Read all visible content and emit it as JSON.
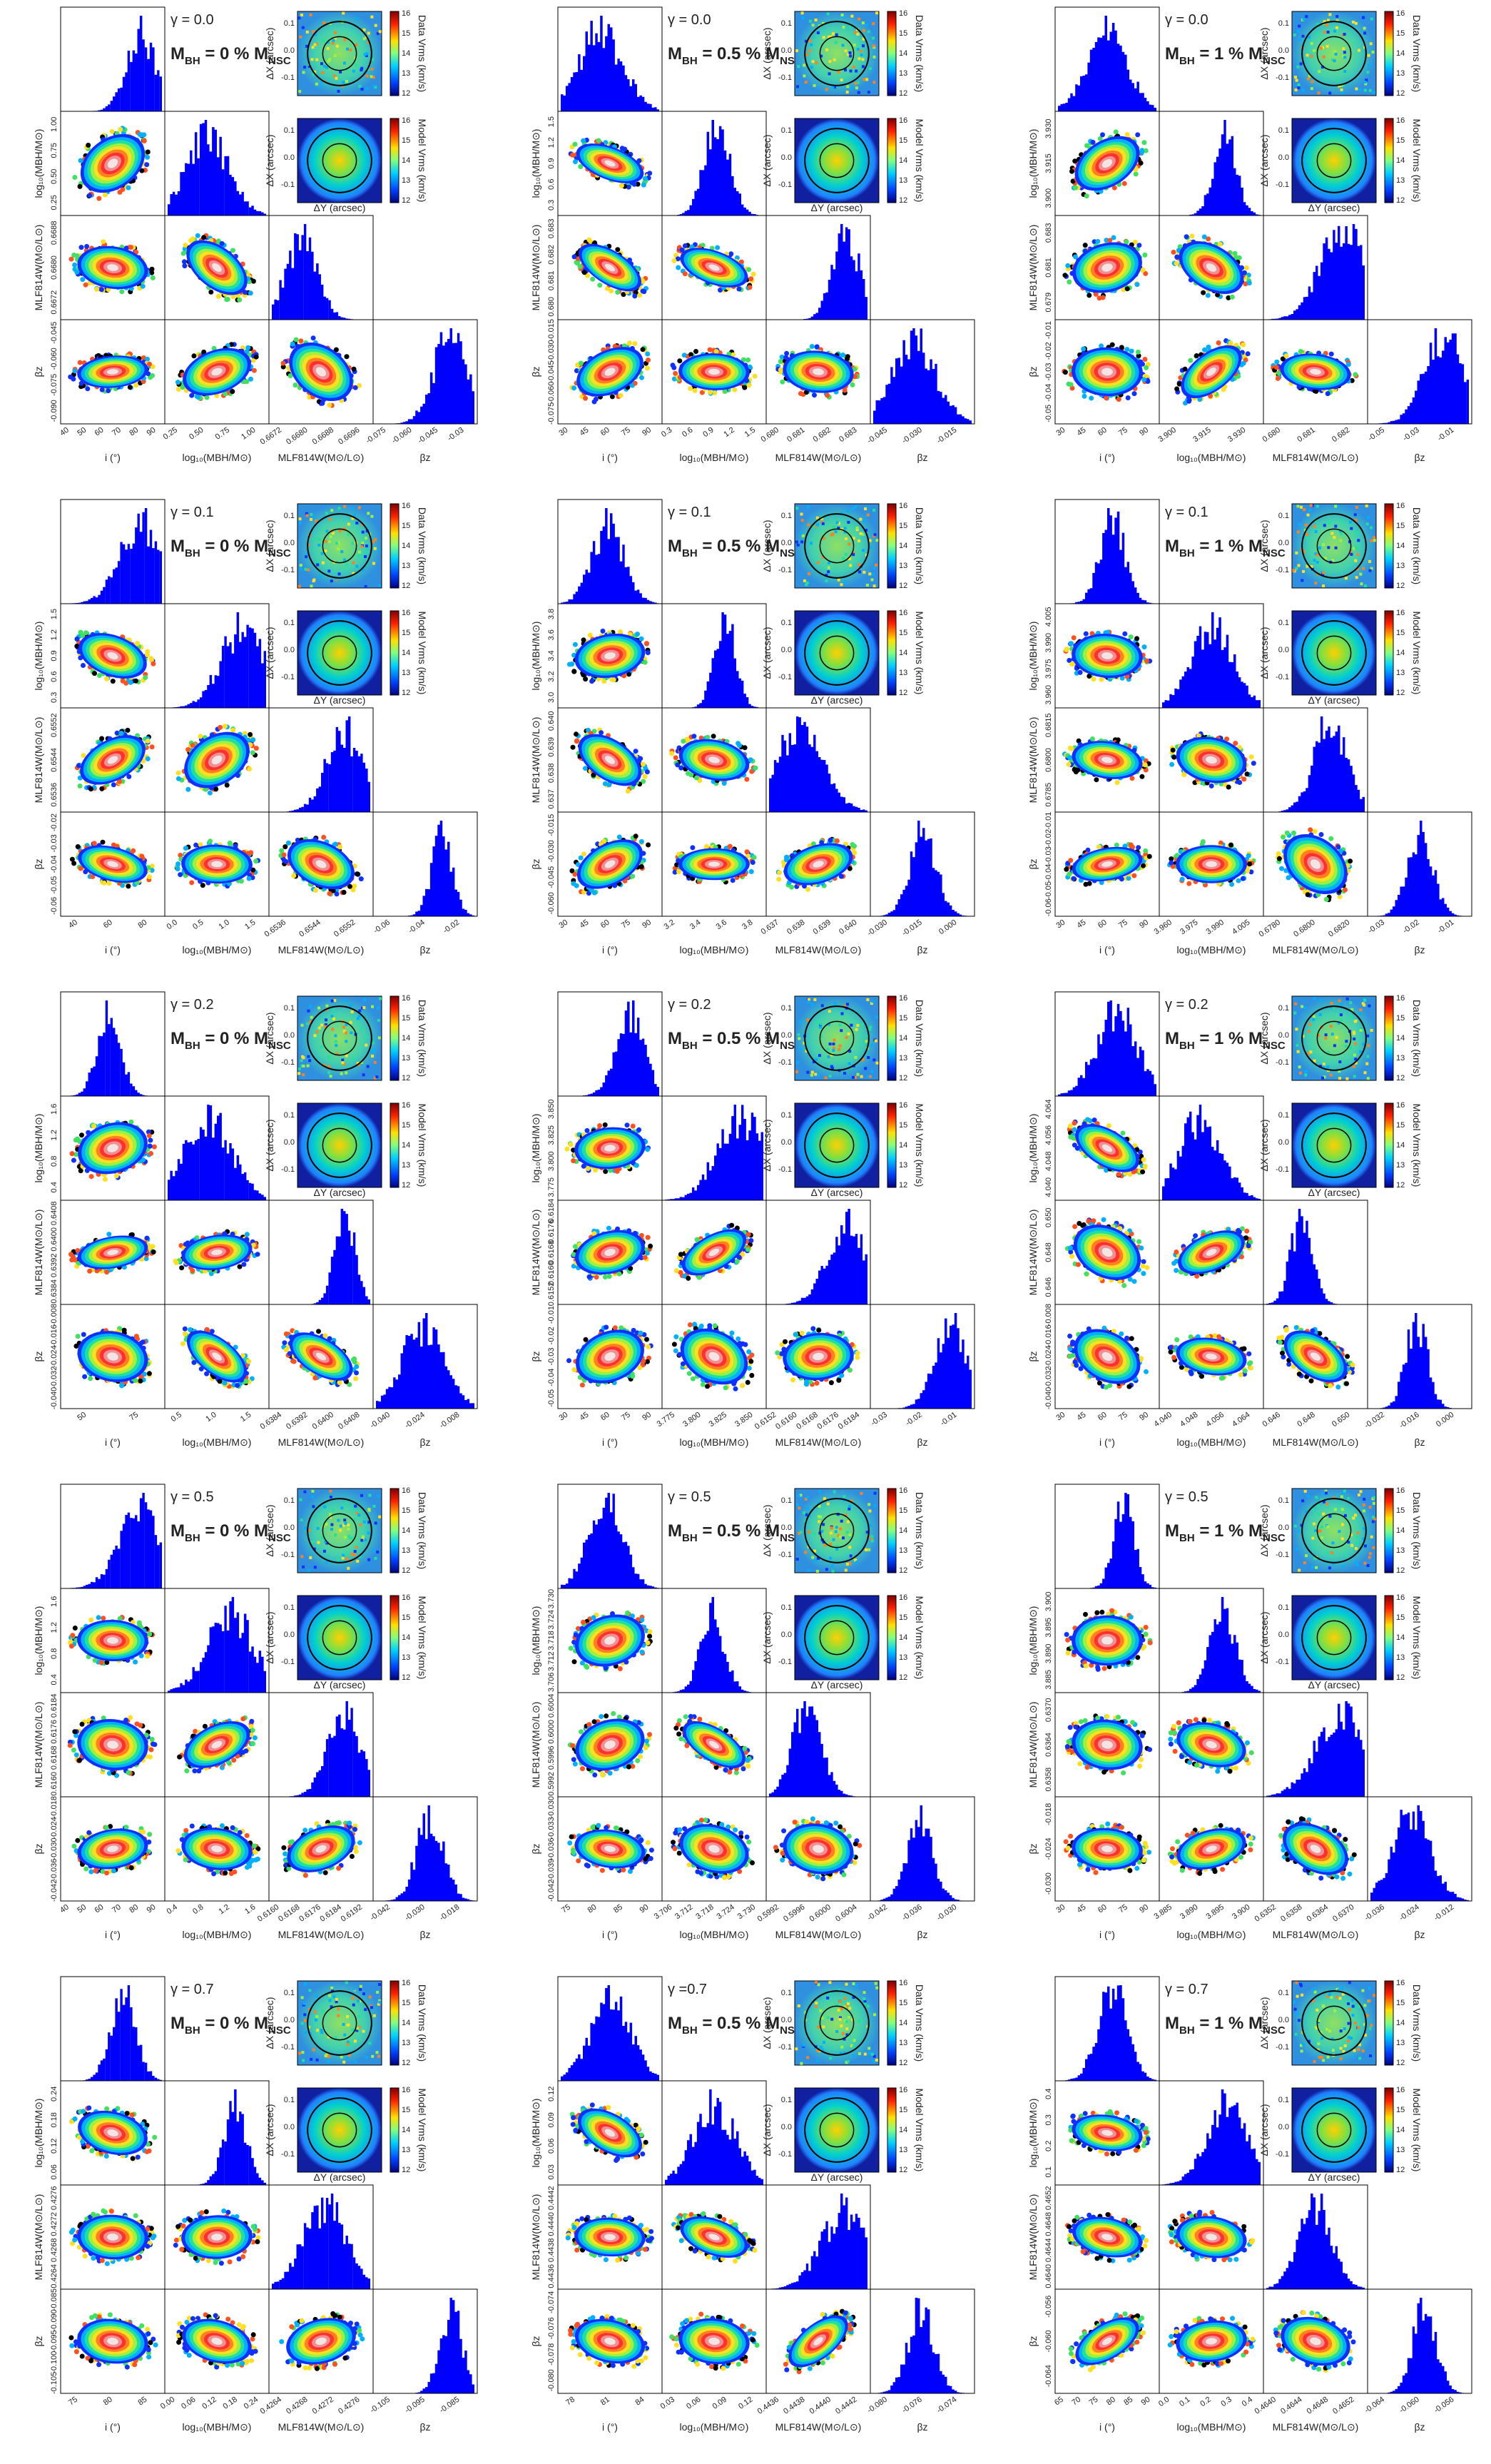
{
  "common": {
    "xlabels": [
      "i (°)",
      "log₁₀(MBH/M⊙)",
      "MLF814W(M⊙/L⊙)",
      "βz"
    ],
    "ylabels": [
      "log₁₀(MBH/M⊙)",
      "MLF814W(M⊙/L⊙)",
      "βz"
    ],
    "map_x": "ΔX (arcsec)",
    "map_y": "ΔY (arcsec)",
    "data_cbar": "Data Vrms (km/s)",
    "model_cbar": "Model Vrms (km/s)",
    "map_ticks": [
      "0.1",
      "0.0",
      "-0.1"
    ],
    "cbar_ticks": [
      "16",
      "15",
      "14",
      "13",
      "12"
    ]
  },
  "panels": [
    {
      "gamma": "γ = 0.0",
      "mbh": [
        "M",
        "BH",
        " = 0 % M",
        "NSC"
      ],
      "xticks": [
        [
          "40",
          "50",
          "60",
          "70",
          "80",
          "90"
        ],
        [
          "0.25",
          "0.50",
          "0.75",
          "1.00"
        ],
        [
          "0.6672",
          "0.6680",
          "0.6688",
          "0.6696"
        ],
        [
          "-0.075",
          "-0.060",
          "-0.045",
          "-0.03"
        ]
      ],
      "yticks": [
        [
          "0.25",
          "0.50",
          "0.75",
          "1.00"
        ],
        [
          "0.6672",
          "0.6680",
          "0.6688"
        ],
        [
          "-0.090",
          "-0.075",
          "-0.060",
          "-0.045"
        ]
      ]
    },
    {
      "gamma": "γ = 0.0",
      "mbh": [
        "M",
        "BH",
        " = 0.5 % M",
        "NSC"
      ],
      "xticks": [
        [
          "30",
          "45",
          "60",
          "75",
          "90"
        ],
        [
          "0.3",
          "0.6",
          "0.9",
          "1.2",
          "1.5"
        ],
        [
          "0.680",
          "0.681",
          "0.682",
          "0.683"
        ],
        [
          "-0.045",
          "-0.030",
          "-0.015"
        ]
      ],
      "yticks": [
        [
          "0.3",
          "0.6",
          "0.9",
          "1.2",
          "1.5"
        ],
        [
          "0.680",
          "0.681",
          "0.682",
          "0.683"
        ],
        [
          "-0.075",
          "-0.060",
          "-0.045",
          "-0.030",
          "-0.015"
        ]
      ]
    },
    {
      "gamma": "γ = 0.0",
      "mbh": [
        "M",
        "BH",
        " = 1 % M",
        "NSC"
      ],
      "xticks": [
        [
          "30",
          "45",
          "60",
          "75",
          "90"
        ],
        [
          "3.900",
          "3.915",
          "3.930"
        ],
        [
          "0.680",
          "0.681",
          "0.682"
        ],
        [
          "-0.05",
          "-0.03",
          "-0.01"
        ]
      ],
      "yticks": [
        [
          "3.900",
          "3.915",
          "3.930"
        ],
        [
          "0.679",
          "0.681",
          "0.683"
        ],
        [
          "-0.05",
          "-0.04",
          "-0.03",
          "-0.02",
          "-0.01"
        ]
      ]
    },
    {
      "gamma": "γ = 0.1",
      "mbh": [
        "M",
        "BH",
        " = 0 % M",
        "NSC"
      ],
      "xticks": [
        [
          "40",
          "60",
          "80"
        ],
        [
          "0.0",
          "0.5",
          "1.0",
          "1.5"
        ],
        [
          "0.6536",
          "0.6544",
          "0.6552"
        ],
        [
          "-0.06",
          "-0.04",
          "-0.02"
        ]
      ],
      "yticks": [
        [
          "0.3",
          "0.6",
          "0.9",
          "1.2",
          "1.5"
        ],
        [
          "0.6536",
          "0.6544",
          "0.6552"
        ],
        [
          "-0.06",
          "-0.05",
          "-0.04",
          "-0.03",
          "-0.02"
        ]
      ]
    },
    {
      "gamma": "γ = 0.1",
      "mbh": [
        "M",
        "BH",
        " = 0.5 % M",
        "NSC"
      ],
      "xticks": [
        [
          "30",
          "45",
          "60",
          "75",
          "90"
        ],
        [
          "3.2",
          "3.4",
          "3.6",
          "3.8"
        ],
        [
          "0.637",
          "0.638",
          "0.639",
          "0.640"
        ],
        [
          "-0.030",
          "-0.015",
          "0.000"
        ]
      ],
      "yticks": [
        [
          "3.0",
          "3.2",
          "3.4",
          "3.6",
          "3.8"
        ],
        [
          "0.637",
          "0.638",
          "0.639",
          "0.640"
        ],
        [
          "-0.060",
          "-0.045",
          "-0.030",
          "-0.015"
        ]
      ]
    },
    {
      "gamma": "γ = 0.1",
      "mbh": [
        "M",
        "BH",
        " = 1 % M",
        "NSC"
      ],
      "xticks": [
        [
          "30",
          "45",
          "60",
          "75",
          "90"
        ],
        [
          "3.960",
          "3.975",
          "3.990",
          "4.005"
        ],
        [
          "0.6780",
          "0.6800",
          "0.6820"
        ],
        [
          "-0.03",
          "-0.02",
          "-0.01"
        ]
      ],
      "yticks": [
        [
          "3.960",
          "3.975",
          "3.990",
          "4.005"
        ],
        [
          "0.6785",
          "0.6800",
          "0.6815"
        ],
        [
          "-0.06",
          "-0.05",
          "-0.04",
          "-0.03",
          "-0.02",
          "-0.01"
        ]
      ]
    },
    {
      "gamma": "γ = 0.2",
      "mbh": [
        "M",
        "BH",
        " = 0 % M",
        "NSC"
      ],
      "xticks": [
        [
          "50",
          "75"
        ],
        [
          "0.5",
          "1.0",
          "1.5"
        ],
        [
          "0.6384",
          "0.6392",
          "0.6400",
          "0.6408"
        ],
        [
          "-0.040",
          "-0.024",
          "-0.008"
        ]
      ],
      "yticks": [
        [
          "0.4",
          "0.8",
          "1.2",
          "1.6"
        ],
        [
          "0.6384",
          "0.6392",
          "0.6400",
          "0.6408"
        ],
        [
          "-0.040",
          "-0.032",
          "-0.024",
          "-0.016",
          "-0.008"
        ]
      ]
    },
    {
      "gamma": "γ = 0.2",
      "mbh": [
        "M",
        "BH",
        " = 0.5 % M",
        "NSC"
      ],
      "xticks": [
        [
          "30",
          "45",
          "60",
          "75",
          "90"
        ],
        [
          "3.775",
          "3.800",
          "3.825",
          "3.850"
        ],
        [
          "0.6152",
          "0.6160",
          "0.6168",
          "0.6176",
          "0.6184"
        ],
        [
          "-0.03",
          "-0.02",
          "-0.01"
        ]
      ],
      "yticks": [
        [
          "3.775",
          "3.800",
          "3.825",
          "3.850"
        ],
        [
          "0.6152",
          "0.6160",
          "0.6168",
          "0.6176",
          "0.6184"
        ],
        [
          "-0.05",
          "-0.04",
          "-0.03",
          "-0.02",
          "-0.01"
        ]
      ]
    },
    {
      "gamma": "γ = 0.2",
      "mbh": [
        "M",
        "BH",
        " = 1 % M",
        "NSC"
      ],
      "xticks": [
        [
          "30",
          "45",
          "60",
          "75",
          "90"
        ],
        [
          "4.040",
          "4.048",
          "4.056",
          "4.064"
        ],
        [
          "0.646",
          "0.648",
          "0.650"
        ],
        [
          "-0.032",
          "-0.016",
          "0.000"
        ]
      ],
      "yticks": [
        [
          "4.040",
          "4.048",
          "4.056",
          "4.064"
        ],
        [
          "0.646",
          "0.648",
          "0.650"
        ],
        [
          "-0.040",
          "-0.032",
          "-0.024",
          "-0.016",
          "-0.008"
        ]
      ]
    },
    {
      "gamma": "γ = 0.5",
      "mbh": [
        "M",
        "BH",
        " = 0 % M",
        "NSC"
      ],
      "xticks": [
        [
          "40",
          "50",
          "60",
          "70",
          "80",
          "90"
        ],
        [
          "0.4",
          "0.8",
          "1.2",
          "1.6"
        ],
        [
          "0.6160",
          "0.6168",
          "0.6176",
          "0.6184",
          "0.6192"
        ],
        [
          "-0.042",
          "-0.030",
          "-0.018"
        ]
      ],
      "yticks": [
        [
          "0.4",
          "0.8",
          "1.2",
          "1.6"
        ],
        [
          "0.6160",
          "0.6168",
          "0.6176",
          "0.6184"
        ],
        [
          "-0.042",
          "-0.036",
          "-0.030",
          "-0.024",
          "-0.018"
        ]
      ]
    },
    {
      "gamma": "γ = 0.5",
      "mbh": [
        "M",
        "BH",
        " = 0.5 % M",
        "NSC"
      ],
      "xticks": [
        [
          "75",
          "80",
          "85",
          "90"
        ],
        [
          "3.706",
          "3.712",
          "3.718",
          "3.724",
          "3.730"
        ],
        [
          "0.5992",
          "0.5996",
          "0.6000",
          "0.6004"
        ],
        [
          "-0.042",
          "-0.036",
          "-0.030"
        ]
      ],
      "yticks": [
        [
          "3.706",
          "3.712",
          "3.718",
          "3.724",
          "3.730"
        ],
        [
          "0.5992",
          "0.5996",
          "0.6000",
          "0.6004"
        ],
        [
          "-0.042",
          "-0.039",
          "-0.036",
          "-0.033",
          "-0.030"
        ]
      ]
    },
    {
      "gamma": "γ = 0.5",
      "mbh": [
        "M",
        "BH",
        " = 1 % M",
        "NSC"
      ],
      "xticks": [
        [
          "30",
          "45",
          "60",
          "75",
          "90"
        ],
        [
          "3.885",
          "3.890",
          "3.895",
          "3.900"
        ],
        [
          "0.6352",
          "0.6358",
          "0.6364",
          "0.6370"
        ],
        [
          "-0.036",
          "-0.024",
          "-0.012"
        ]
      ],
      "yticks": [
        [
          "3.885",
          "3.890",
          "3.895",
          "3.900"
        ],
        [
          "0.6358",
          "0.6364",
          "0.6370"
        ],
        [
          "-0.030",
          "-0.024",
          "-0.018"
        ]
      ]
    },
    {
      "gamma": "γ = 0.7",
      "mbh": [
        "M",
        "BH",
        " = 0 % M",
        "NSC"
      ],
      "xticks": [
        [
          "75",
          "80",
          "85"
        ],
        [
          "0.00",
          "0.06",
          "0.12",
          "0.18",
          "0.24"
        ],
        [
          "0.4264",
          "0.4268",
          "0.4272",
          "0.4276"
        ],
        [
          "-0.105",
          "-0.095",
          "-0.085"
        ]
      ],
      "yticks": [
        [
          "0.06",
          "0.12",
          "0.18",
          "0.24"
        ],
        [
          "0.4264",
          "0.4268",
          "0.4272",
          "0.4276"
        ],
        [
          "-0.105",
          "-0.100",
          "-0.095",
          "-0.090",
          "-0.085"
        ]
      ]
    },
    {
      "gamma": "γ =0.7",
      "mbh": [
        "M",
        "BH",
        " = 0.5 % M",
        "NSC"
      ],
      "xticks": [
        [
          "78",
          "81",
          "84"
        ],
        [
          "0.03",
          "0.06",
          "0.09",
          "0.12"
        ],
        [
          "0.4436",
          "0.4438",
          "0.4440",
          "0.4442"
        ],
        [
          "-0.080",
          "-0.076",
          "-0.074"
        ]
      ],
      "yticks": [
        [
          "0.03",
          "0.06",
          "0.09",
          "0.12"
        ],
        [
          "0.4436",
          "0.4438",
          "0.4440",
          "0.4442"
        ],
        [
          "-0.080",
          "-0.078",
          "-0.076",
          "-0.074"
        ]
      ]
    },
    {
      "gamma": "γ = 0.7",
      "mbh": [
        "M",
        "BH",
        " = 1 % M",
        "NSC"
      ],
      "xticks": [
        [
          "65",
          "70",
          "75",
          "80",
          "85",
          "90"
        ],
        [
          "0.0",
          "0.1",
          "0.2",
          "0.3",
          "0.4"
        ],
        [
          "0.4640",
          "0.4644",
          "0.4648",
          "0.4652"
        ],
        [
          "-0.064",
          "-0.060",
          "-0.056"
        ]
      ],
      "yticks": [
        [
          "0.1",
          "0.2",
          "0.3",
          "0.4"
        ],
        [
          "0.4640",
          "0.4644",
          "0.4648",
          "0.4652"
        ],
        [
          "-0.064",
          "-0.060",
          "-0.056"
        ]
      ]
    }
  ]
}
